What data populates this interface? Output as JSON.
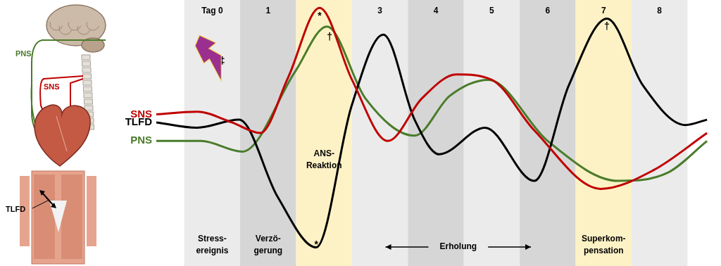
{
  "chart_data": {
    "type": "line",
    "xlim": [
      -0.5,
      9.6
    ],
    "ylim": [
      0,
      100
    ],
    "tick_labels": false,
    "grid": false,
    "series": [
      {
        "name": "SNS",
        "color": "#c00000",
        "x": [
          -0.5,
          0.23,
          0.85,
          1.36,
          1.86,
          2.42,
          3.0,
          3.64,
          4.25,
          4.87,
          5.5,
          6.26,
          7.45,
          8.39,
          9.35
        ],
        "values": [
          57,
          58,
          54,
          50,
          71,
          97,
          70,
          47,
          63,
          72,
          70,
          51,
          29,
          36,
          50
        ]
      },
      {
        "name": "TLFD",
        "color": "#000000",
        "x": [
          -0.5,
          0.23,
          0.98,
          1.67,
          2.36,
          2.99,
          3.56,
          4.12,
          4.56,
          5.38,
          6.26,
          6.88,
          7.56,
          8.2,
          8.96,
          9.35
        ],
        "values": [
          54,
          52,
          55,
          26,
          7,
          60,
          87,
          55,
          42,
          52,
          32,
          68,
          93,
          68,
          53,
          55
        ]
      },
      {
        "name": "PNS",
        "color": "#4a7c2a",
        "x": [
          -0.5,
          0.3,
          1.04,
          1.98,
          2.55,
          3.24,
          4.12,
          4.75,
          5.44,
          6.5,
          7.76,
          8.64,
          9.35
        ],
        "values": [
          47,
          47,
          43,
          73,
          90,
          63,
          49,
          64,
          70,
          47,
          32,
          35,
          47
        ]
      }
    ],
    "bands": [
      {
        "start": 0,
        "end": 1,
        "label": "Tag 0",
        "color": "#ebebeb"
      },
      {
        "start": 1,
        "end": 2,
        "label": "1",
        "color": "#d6d6d6"
      },
      {
        "start": 2,
        "end": 3,
        "label": null,
        "color": "#fdf2c6"
      },
      {
        "start": 3,
        "end": 4,
        "label": "3",
        "color": "#ebebeb"
      },
      {
        "start": 4,
        "end": 5,
        "label": "4",
        "color": "#d6d6d6"
      },
      {
        "start": 5,
        "end": 6,
        "label": "5",
        "color": "#ebebeb"
      },
      {
        "start": 6,
        "end": 7,
        "label": "6",
        "color": "#d6d6d6"
      },
      {
        "start": 7,
        "end": 8,
        "label": "7",
        "color": "#fdf2c6"
      },
      {
        "start": 8,
        "end": 9,
        "label": "8",
        "color": "#ebebeb"
      }
    ],
    "phases": [
      {
        "start": 0,
        "end": 1,
        "label": "Stress-\nereignis"
      },
      {
        "start": 1,
        "end": 2,
        "label": "Verzö-\ngerung"
      },
      {
        "start": 3.6,
        "end": 6.2,
        "label": "Erholung"
      },
      {
        "start": 7,
        "end": 8,
        "label": "Superkom-\npensation"
      }
    ],
    "annotations": [
      {
        "text": "ANS-\nReaktion",
        "x": 2.5,
        "y": 40
      },
      {
        "text": "*",
        "x": 2.42,
        "y": 94
      },
      {
        "text": "†",
        "x": 2.6,
        "y": 86
      },
      {
        "text": "*",
        "x": 2.36,
        "y": 8
      },
      {
        "text": "†",
        "x": 7.56,
        "y": 90
      },
      {
        "text": "‡",
        "x": 0.68,
        "y": 77
      }
    ]
  }
}
